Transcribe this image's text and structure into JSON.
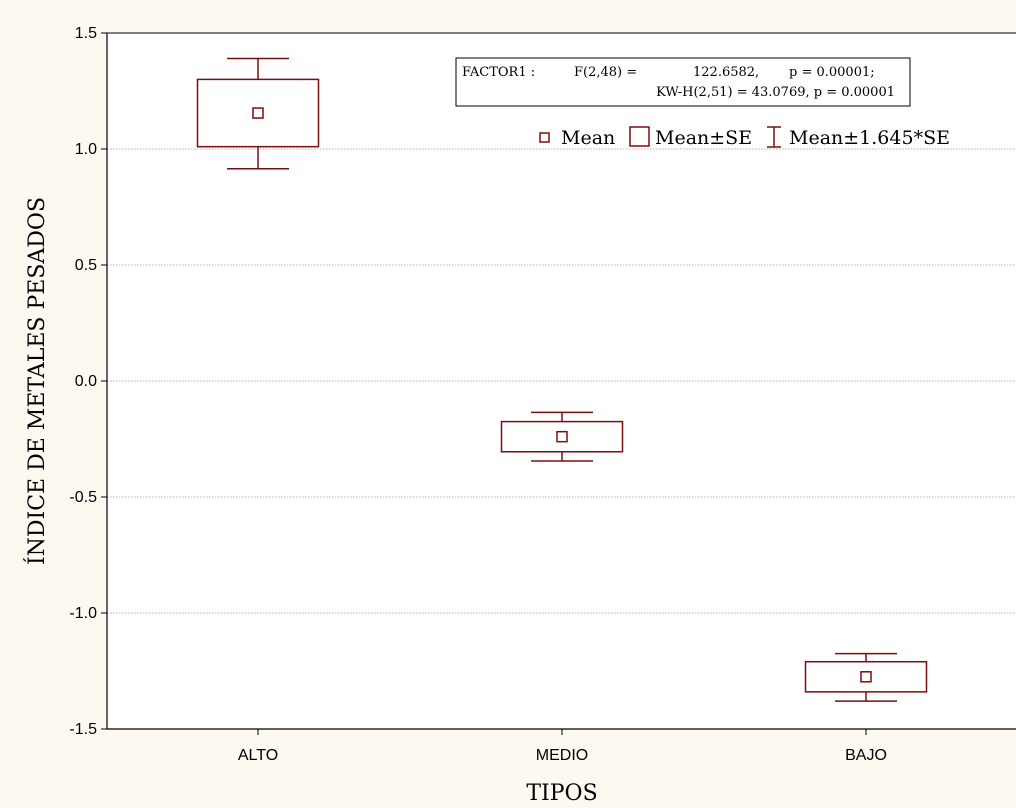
{
  "chart_data": {
    "type": "box",
    "xlabel": "TIPOS",
    "ylabel": "ÍNDICE DE METALES PESADOS",
    "ylim": [
      -1.5,
      1.5
    ],
    "yticks": [
      "1.5",
      "1.0",
      "0.5",
      "0.0",
      "-0.5",
      "-1.0",
      "-1.5"
    ],
    "ytick_values": [
      1.5,
      1.0,
      0.5,
      0.0,
      -0.5,
      -1.0,
      -1.5
    ],
    "grid": true,
    "categories": [
      "ALTO",
      "MEDIO",
      "BAJO"
    ],
    "mean": [
      1.155,
      -0.24,
      -1.275
    ],
    "se_low": [
      1.01,
      -0.305,
      -1.34
    ],
    "se_high": [
      1.3,
      -0.175,
      -1.21
    ],
    "whisker_low": [
      0.915,
      -0.345,
      -1.38
    ],
    "whisker_high": [
      1.39,
      -0.135,
      -1.175
    ],
    "color": "#7a0e0e",
    "stats": {
      "line1_label": "FACTOR1 :",
      "line1_f": "F(2,48) =",
      "line1_value": "122.6582,",
      "line1_p": "p = 0.00001;",
      "line2": "KW-H(2,51) = 43.0769, p = 0.00001"
    },
    "legend": {
      "position": "top-right",
      "items": [
        "Mean",
        "Mean±SE",
        "Mean±1.645*SE"
      ]
    }
  }
}
